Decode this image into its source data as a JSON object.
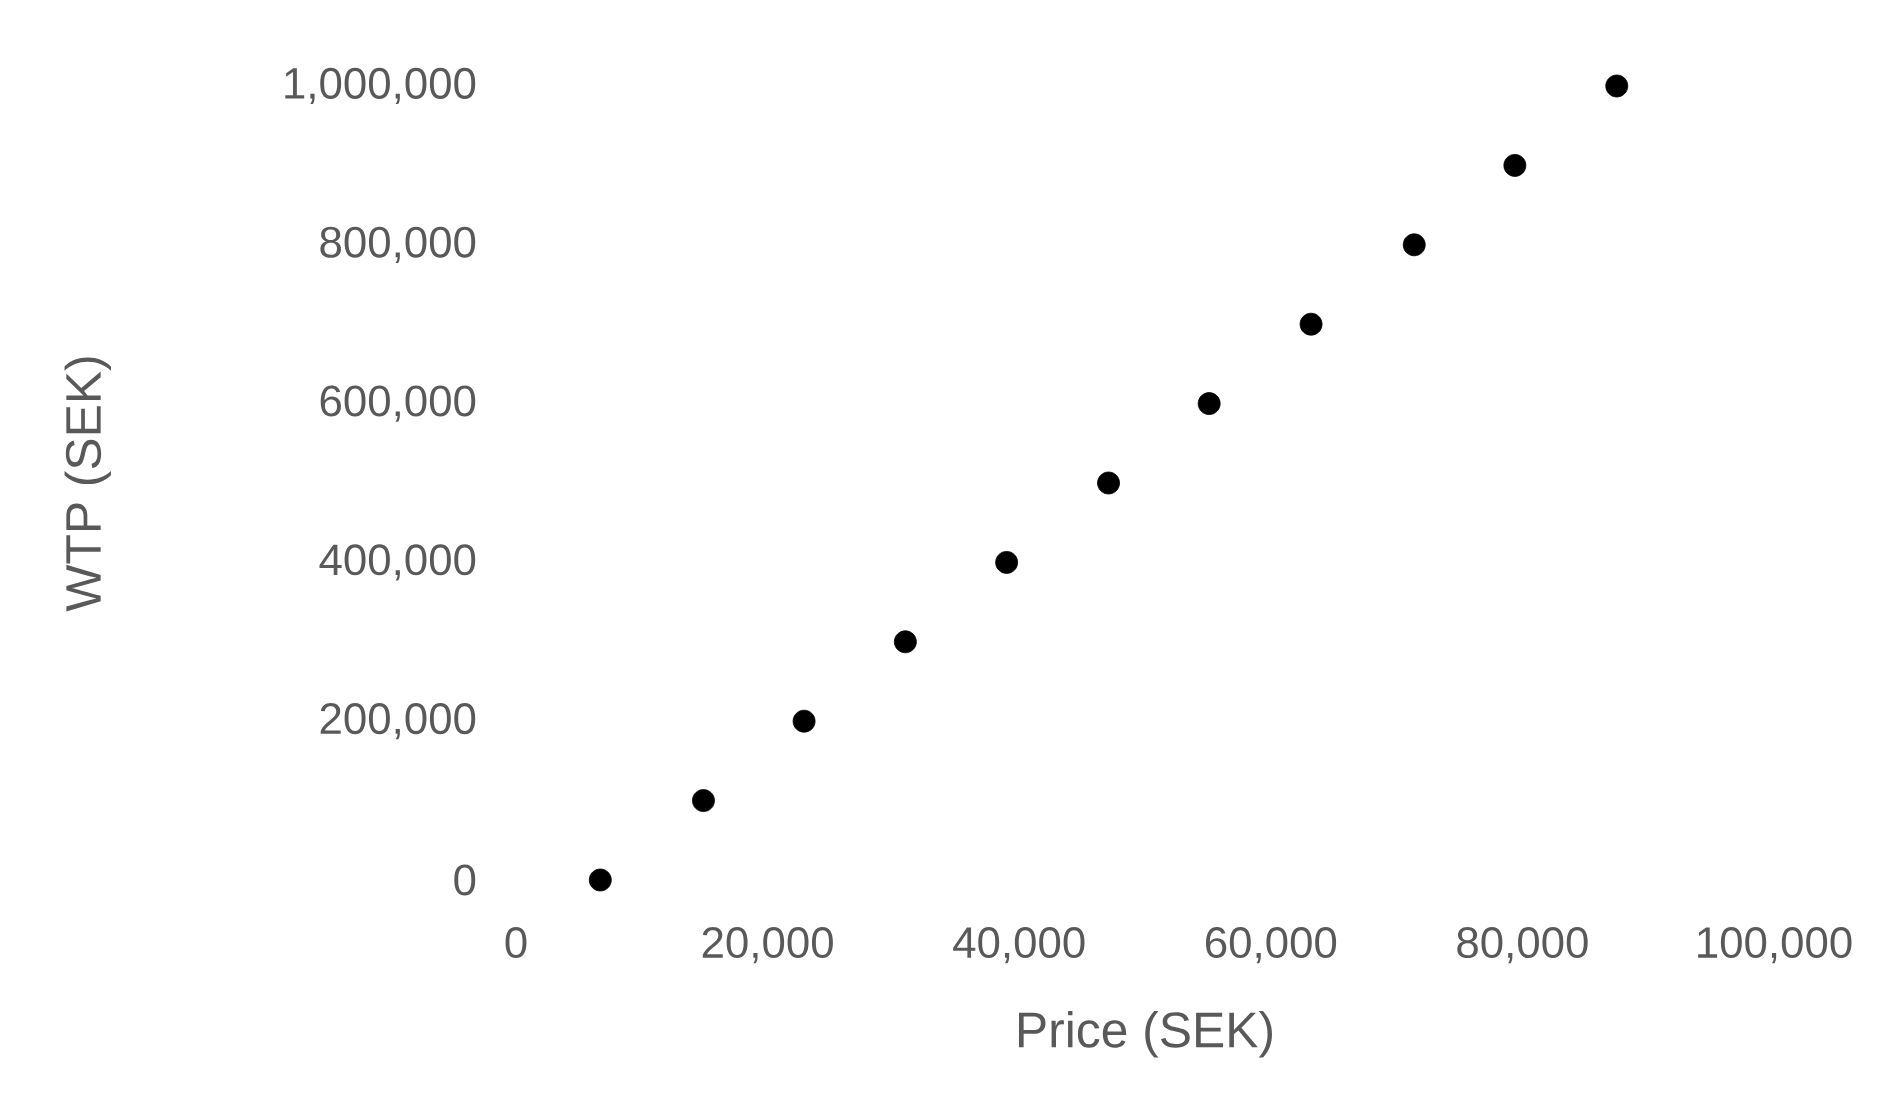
{
  "chart_data": {
    "type": "scatter",
    "xlabel": "Price (SEK)",
    "ylabel": "WTP (SEK)",
    "x": [
      6700,
      14900,
      22900,
      30950,
      39000,
      47100,
      55100,
      63200,
      71400,
      79400,
      87500
    ],
    "values": [
      0,
      100000,
      200000,
      300000,
      400000,
      500000,
      600000,
      700000,
      800000,
      900000,
      1000000
    ],
    "color": "#000000",
    "marker": "circle",
    "xlim": [
      0,
      100000
    ],
    "ylim": [
      0,
      1000000
    ],
    "xticks": [
      0,
      {
        "value": 20000,
        "label": "20,000"
      },
      {
        "value": 40000,
        "label": "40,000"
      },
      {
        "value": 60000,
        "label": "60,000"
      },
      {
        "value": 80000,
        "label": "80,000"
      },
      {
        "value": 100000,
        "label": "100,000"
      }
    ],
    "yticks": [
      0,
      {
        "value": 200000,
        "label": "200,000"
      },
      {
        "value": 400000,
        "label": "400,000"
      },
      {
        "value": 600000,
        "label": "600,000"
      },
      {
        "value": 800000,
        "label": "800,000"
      },
      {
        "value": 1000000,
        "label": "1,000,000"
      }
    ]
  }
}
